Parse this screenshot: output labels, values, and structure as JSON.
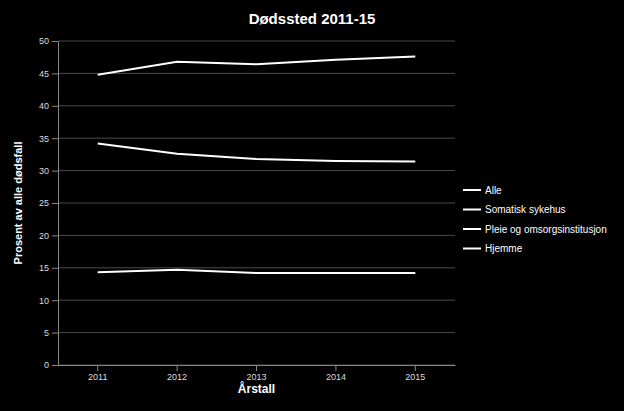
{
  "chart_data": {
    "type": "line",
    "title": "Dødssted 2011-15",
    "x_label": "Årstall",
    "y_label": "Prosent av alle dødsfall",
    "categories": [
      "2011",
      "2012",
      "2013",
      "2014",
      "2015"
    ],
    "series": [
      {
        "name": "Alle",
        "color": "#ffffff",
        "values": [
          null,
          null,
          null,
          null,
          null
        ]
      },
      {
        "name": "Somatisk sykehus",
        "color": "#ffffff",
        "values": [
          34.2,
          32.6,
          31.8,
          31.5,
          31.4
        ]
      },
      {
        "name": "Pleie og omsorgsinstitusjon",
        "color": "#ffffff",
        "values": [
          44.8,
          46.8,
          46.4,
          47.1,
          47.6
        ]
      },
      {
        "name": "Hjemme",
        "color": "#ffffff",
        "values": [
          14.3,
          14.7,
          14.2,
          14.2,
          14.2
        ]
      }
    ],
    "ylim": [
      0,
      50
    ],
    "yticks": [
      0,
      5,
      10,
      15,
      20,
      25,
      30,
      35,
      40,
      45,
      50
    ],
    "grid": true,
    "legend": "right"
  }
}
